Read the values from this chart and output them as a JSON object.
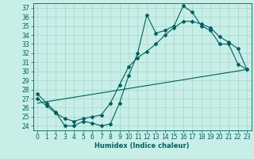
{
  "xlabel": "Humidex (Indice chaleur)",
  "bg_color": "#c8eee8",
  "line_color": "#006060",
  "grid_color": "#a0ccc4",
  "ylim": [
    23.5,
    37.5
  ],
  "xlim": [
    -0.5,
    23.5
  ],
  "yticks": [
    24,
    25,
    26,
    27,
    28,
    29,
    30,
    31,
    32,
    33,
    34,
    35,
    36,
    37
  ],
  "xticks": [
    0,
    1,
    2,
    3,
    4,
    5,
    6,
    7,
    8,
    9,
    10,
    11,
    12,
    13,
    14,
    15,
    16,
    17,
    18,
    19,
    20,
    21,
    22,
    23
  ],
  "line1_x": [
    0,
    1,
    2,
    3,
    4,
    5,
    6,
    7,
    8,
    9,
    10,
    11,
    12,
    13,
    14,
    15,
    16,
    17,
    18,
    19,
    20,
    21,
    22,
    23
  ],
  "line1_y": [
    27.5,
    26.5,
    25.5,
    24.0,
    24.0,
    24.5,
    24.3,
    24.0,
    24.2,
    26.5,
    29.5,
    32.0,
    36.2,
    34.2,
    34.5,
    35.0,
    37.2,
    36.5,
    35.0,
    34.5,
    33.0,
    33.0,
    30.8,
    30.2
  ],
  "line2_x": [
    0,
    1,
    2,
    3,
    4,
    5,
    6,
    7,
    8,
    9,
    10,
    11,
    12,
    13,
    14,
    15,
    16,
    17,
    18,
    19,
    20,
    21,
    22,
    23
  ],
  "line2_y": [
    27.0,
    26.2,
    25.4,
    24.8,
    24.5,
    24.8,
    25.0,
    25.2,
    26.5,
    28.5,
    30.5,
    31.5,
    32.2,
    33.0,
    34.0,
    34.8,
    35.5,
    35.5,
    35.2,
    34.8,
    33.8,
    33.2,
    32.5,
    30.2
  ],
  "line3_x": [
    0,
    23
  ],
  "line3_y": [
    26.5,
    30.2
  ]
}
